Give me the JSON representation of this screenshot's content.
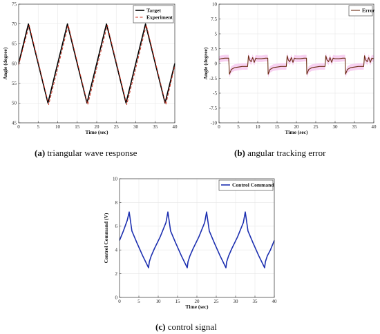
{
  "colors": {
    "target": "#000000",
    "experiment": "#cc3322",
    "error": "#6a2a10",
    "error_band": "#f6c9ee",
    "control": "#1c2fb0",
    "grid": "#e6e6e6",
    "axis": "#333333"
  },
  "captions": [
    {
      "letter": "(a)",
      "text": " triangular wave response"
    },
    {
      "letter": "(b)",
      "text": " angular tracking error"
    },
    {
      "letter": "(c)",
      "text": " control signal"
    }
  ],
  "chart_data": [
    {
      "type": "line",
      "title": "",
      "xlabel": "Time (sec)",
      "ylabel": "Angle (degree)",
      "xlim": [
        0,
        40
      ],
      "ylim": [
        45,
        75
      ],
      "xticks": [
        0,
        5,
        10,
        15,
        20,
        25,
        30,
        35,
        40
      ],
      "yticks": [
        45,
        50,
        55,
        60,
        65,
        70,
        75
      ],
      "grid": true,
      "legend": "top-right",
      "series": [
        {
          "name": "Target",
          "style": "solid",
          "x": [
            0,
            2.5,
            7.5,
            12.5,
            17.5,
            22.5,
            27.5,
            32.5,
            37.5,
            40
          ],
          "y": [
            60,
            70,
            50,
            70,
            50,
            70,
            50,
            70,
            50,
            60
          ]
        },
        {
          "name": "Experiment",
          "style": "dashed",
          "x": [
            0,
            2.7,
            7.7,
            12.7,
            17.7,
            22.7,
            27.7,
            32.7,
            37.7,
            40
          ],
          "y": [
            59.6,
            69.7,
            49.6,
            69.7,
            49.6,
            69.7,
            49.6,
            69.7,
            49.6,
            59.5
          ]
        }
      ]
    },
    {
      "type": "line",
      "title": "",
      "xlabel": "Time (sec)",
      "ylabel": "Angle (degree)",
      "xlim": [
        0,
        40
      ],
      "ylim": [
        -10,
        10
      ],
      "xticks": [
        0,
        5,
        10,
        15,
        20,
        25,
        30,
        35,
        40
      ],
      "yticks": [
        -10,
        -7.5,
        -5,
        -2.5,
        0,
        2.5,
        5,
        7.5,
        10
      ],
      "grid": true,
      "legend": "top-right",
      "series": [
        {
          "name": "Error",
          "x": [
            0,
            0.5,
            1.5,
            2.5,
            2.7,
            3.2,
            4,
            5,
            6,
            7.4,
            7.6,
            7.9,
            8.3,
            8.7,
            9.1,
            9.5,
            10,
            11,
            12,
            12.4,
            12.6,
            12.7,
            13.2,
            14,
            15,
            16,
            17.4,
            17.6,
            17.9,
            18.3,
            18.7,
            19.1,
            19.5,
            20,
            21,
            22,
            22.4,
            22.6,
            22.7,
            23.2,
            24,
            25,
            26,
            27.4,
            27.6,
            27.9,
            28.3,
            28.7,
            29.1,
            29.5,
            30,
            31,
            32,
            32.4,
            32.6,
            32.7,
            33.2,
            34,
            35,
            36,
            37.4,
            37.6,
            37.9,
            38.3,
            38.7,
            39.1,
            39.5,
            40
          ],
          "y": [
            0.7,
            0.8,
            0.9,
            0.9,
            -1.8,
            -1.0,
            -0.7,
            -0.6,
            -0.5,
            -0.5,
            1.3,
            0.6,
            0.3,
            1.0,
            0.2,
            0.9,
            0.8,
            0.8,
            0.9,
            0.9,
            0.9,
            -1.8,
            -1.0,
            -0.7,
            -0.6,
            -0.5,
            -0.5,
            1.3,
            0.6,
            0.3,
            1.0,
            0.2,
            0.9,
            0.8,
            0.8,
            0.9,
            0.9,
            0.9,
            -1.8,
            -1.0,
            -0.7,
            -0.6,
            -0.5,
            -0.5,
            1.3,
            0.6,
            0.3,
            1.0,
            0.2,
            0.9,
            0.8,
            0.8,
            0.9,
            0.9,
            0.9,
            -1.8,
            -1.0,
            -0.7,
            -0.6,
            -0.5,
            -0.5,
            1.3,
            0.6,
            0.3,
            1.0,
            0.2,
            0.9,
            0.8
          ]
        }
      ]
    },
    {
      "type": "line",
      "title": "",
      "xlabel": "Time (sec)",
      "ylabel": "Control Command (V)",
      "xlim": [
        0,
        40
      ],
      "ylim": [
        0,
        10
      ],
      "xticks": [
        0,
        5,
        10,
        15,
        20,
        25,
        30,
        35,
        40
      ],
      "yticks": [
        0,
        2,
        4,
        6,
        8,
        10
      ],
      "grid": true,
      "legend": "top-right",
      "series": [
        {
          "name": "Control Command",
          "x": [
            0,
            1,
            2,
            2.5,
            3.2,
            4.5,
            6,
            7.5,
            7.7,
            8.2,
            9,
            10.5,
            12,
            12.5,
            13.2,
            14.5,
            16,
            17.5,
            17.7,
            18.2,
            19,
            20.5,
            22,
            22.5,
            23.2,
            24.5,
            26,
            27.5,
            27.7,
            28.2,
            29,
            30.5,
            32,
            32.5,
            33.2,
            34.5,
            36,
            37.5,
            37.7,
            38.2,
            39,
            40
          ],
          "y": [
            4.8,
            5.6,
            6.5,
            7.2,
            5.6,
            4.6,
            3.5,
            2.5,
            3.0,
            3.5,
            4.1,
            5.1,
            6.3,
            7.2,
            5.6,
            4.6,
            3.5,
            2.5,
            3.0,
            3.5,
            4.1,
            5.1,
            6.3,
            7.2,
            5.6,
            4.6,
            3.5,
            2.5,
            3.0,
            3.5,
            4.1,
            5.1,
            6.3,
            7.2,
            5.6,
            4.6,
            3.5,
            2.5,
            3.0,
            3.5,
            4.0,
            4.8
          ]
        }
      ]
    }
  ]
}
